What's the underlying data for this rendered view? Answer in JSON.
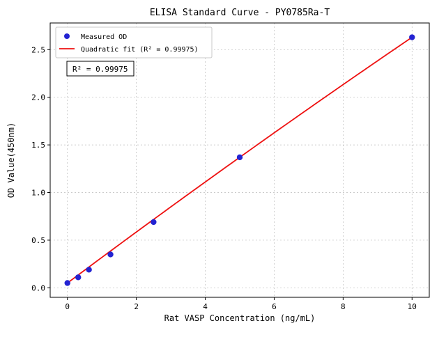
{
  "figure": {
    "title": "ELISA Standard Curve - PY0785Ra-T",
    "annotation": "R² = 0.99975"
  },
  "legend": {
    "position": "upper left",
    "items": [
      {
        "label": "Measured OD",
        "marker": "dot",
        "color": "#2323d2"
      },
      {
        "label": "Quadratic fit (R² = 0.99975)",
        "marker": "line",
        "color": "#ee1111"
      }
    ]
  },
  "chart_data": {
    "type": "scatter",
    "title": "ELISA Standard Curve - PY0785Ra-T",
    "xlabel": "Rat VASP Concentration (ng/mL)",
    "ylabel": "OD Value(450nm)",
    "x": [
      0,
      0.313,
      0.625,
      1.25,
      2.5,
      5,
      10
    ],
    "y": [
      0.05,
      0.11,
      0.19,
      0.35,
      0.69,
      1.37,
      2.63
    ],
    "series": [
      {
        "name": "Measured OD",
        "kind": "points",
        "color": "#2323d2"
      },
      {
        "name": "Quadratic fit (R² = 0.99975)",
        "kind": "quadratic-fit",
        "color": "#ee1111",
        "r_squared": 0.99975
      }
    ],
    "xticks": [
      0,
      2,
      4,
      6,
      8,
      10
    ],
    "yticks": [
      0,
      0.5,
      1,
      1.5,
      2,
      2.5
    ],
    "xtick_labels": [
      "0",
      "2",
      "4",
      "6",
      "8",
      "10"
    ],
    "ytick_labels": [
      "0.0",
      "0.5",
      "1.0",
      "1.5",
      "2.0",
      "2.5"
    ],
    "xlim": [
      -0.5,
      10.5
    ],
    "ylim": [
      -0.1,
      2.78
    ],
    "grid": true,
    "grid_style": "dashed",
    "point_color": "#2323d2",
    "line_color": "#ee1111",
    "annotation": "R² = 0.99975"
  }
}
